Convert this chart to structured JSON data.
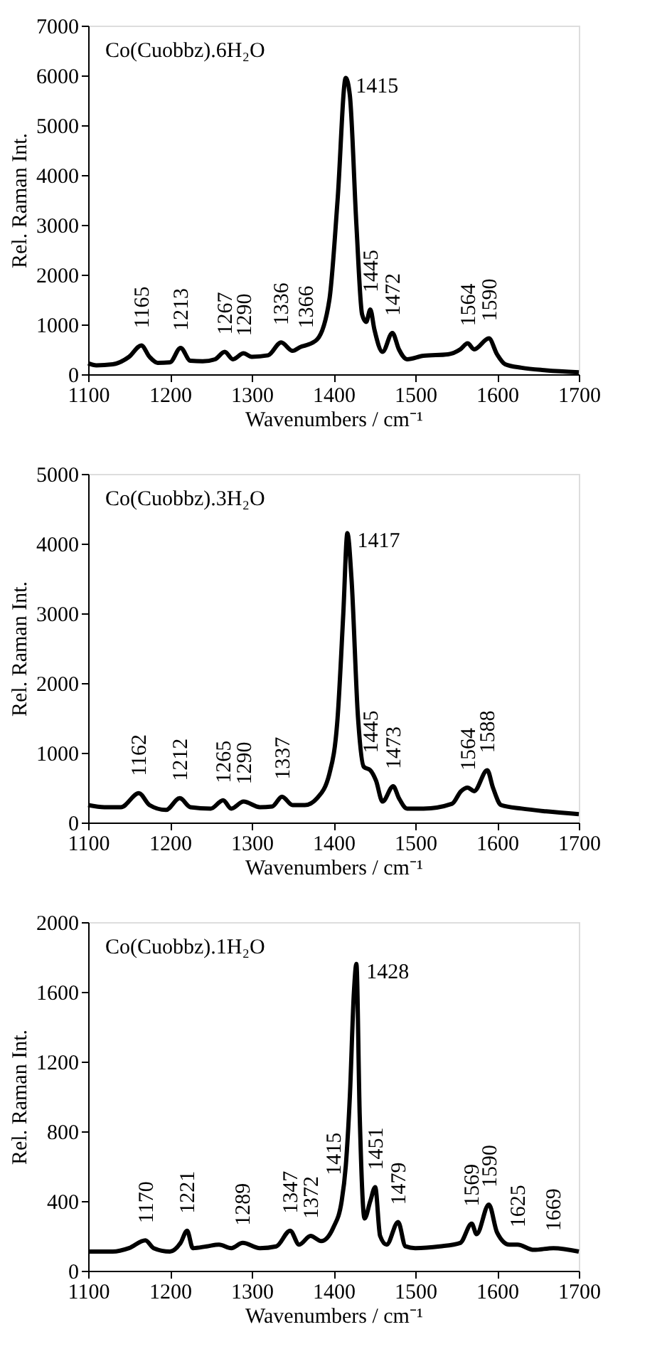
{
  "chart_data": [
    {
      "type": "line",
      "title": "Co(Cuobbz).6H₂O",
      "xlabel": "Wavenumbers / cm⁻¹",
      "ylabel": "Rel. Raman Int.",
      "xlim": [
        1100,
        1700
      ],
      "xticks": [
        1100,
        1200,
        1300,
        1400,
        1500,
        1600,
        1700
      ],
      "ylim": [
        0,
        7000
      ],
      "yticks": [
        0,
        1000,
        2000,
        3000,
        4000,
        5000,
        6000,
        7000
      ],
      "grid": false,
      "legend": false,
      "line_style": "solid",
      "marker": "none",
      "series": [
        {
          "color": "#000000",
          "x": [
            1100,
            1110,
            1130,
            1150,
            1165,
            1175,
            1185,
            1200,
            1213,
            1225,
            1240,
            1255,
            1267,
            1277,
            1290,
            1300,
            1320,
            1336,
            1350,
            1360,
            1366,
            1380,
            1395,
            1405,
            1415,
            1420,
            1428,
            1435,
            1440,
            1445,
            1450,
            1460,
            1472,
            1480,
            1490,
            1510,
            1540,
            1555,
            1564,
            1572,
            1590,
            1600,
            1610,
            1630,
            1660,
            1700
          ],
          "values": [
            220,
            180,
            200,
            350,
            580,
            350,
            230,
            240,
            530,
            270,
            260,
            300,
            450,
            300,
            420,
            350,
            380,
            640,
            470,
            550,
            580,
            700,
            1500,
            3500,
            5950,
            5600,
            3000,
            1200,
            1050,
            1300,
            900,
            450,
            830,
            500,
            300,
            370,
            400,
            500,
            620,
            500,
            720,
            400,
            200,
            130,
            80,
            40
          ]
        }
      ],
      "annotations": [
        {
          "text": "1165",
          "x": 1165,
          "y": 580
        },
        {
          "text": "1213",
          "x": 1213,
          "y": 530
        },
        {
          "text": "1267",
          "x": 1267,
          "y": 450
        },
        {
          "text": "1290",
          "x": 1290,
          "y": 420
        },
        {
          "text": "1336",
          "x": 1336,
          "y": 640
        },
        {
          "text": "1366",
          "x": 1366,
          "y": 580
        },
        {
          "text": "1415",
          "x": 1415,
          "y": 5950
        },
        {
          "text": "1445",
          "x": 1445,
          "y": 1300
        },
        {
          "text": "1472",
          "x": 1472,
          "y": 830
        },
        {
          "text": "1564",
          "x": 1564,
          "y": 620
        },
        {
          "text": "1590",
          "x": 1590,
          "y": 720
        }
      ]
    },
    {
      "type": "line",
      "title": "Co(Cuobbz).3H₂O",
      "xlabel": "Wavenumbers / cm⁻¹",
      "ylabel": "Rel. Raman Int.",
      "xlim": [
        1100,
        1700
      ],
      "xticks": [
        1100,
        1200,
        1300,
        1400,
        1500,
        1600,
        1700
      ],
      "ylim": [
        0,
        5000
      ],
      "yticks": [
        0,
        1000,
        2000,
        3000,
        4000,
        5000
      ],
      "grid": false,
      "legend": false,
      "line_style": "solid",
      "marker": "none",
      "series": [
        {
          "color": "#000000",
          "x": [
            1100,
            1120,
            1140,
            1162,
            1175,
            1195,
            1212,
            1225,
            1250,
            1265,
            1275,
            1290,
            1310,
            1325,
            1337,
            1350,
            1365,
            1380,
            1395,
            1405,
            1412,
            1417,
            1422,
            1430,
            1437,
            1445,
            1452,
            1460,
            1473,
            1480,
            1490,
            1510,
            1545,
            1556,
            1564,
            1572,
            1588,
            1595,
            1605,
            1630,
            1660,
            1700
          ],
          "values": [
            250,
            220,
            220,
            420,
            250,
            180,
            350,
            220,
            200,
            320,
            200,
            300,
            220,
            230,
            370,
            250,
            250,
            350,
            700,
            1500,
            3000,
            4150,
            3500,
            1500,
            800,
            750,
            600,
            300,
            520,
            350,
            200,
            200,
            270,
            450,
            500,
            450,
            750,
            500,
            250,
            200,
            160,
            120
          ]
        }
      ],
      "annotations": [
        {
          "text": "1162",
          "x": 1162,
          "y": 420
        },
        {
          "text": "1212",
          "x": 1212,
          "y": 350
        },
        {
          "text": "1265",
          "x": 1265,
          "y": 320
        },
        {
          "text": "1290",
          "x": 1290,
          "y": 300
        },
        {
          "text": "1337",
          "x": 1337,
          "y": 370
        },
        {
          "text": "1417",
          "x": 1417,
          "y": 4150
        },
        {
          "text": "1445",
          "x": 1445,
          "y": 750
        },
        {
          "text": "1473",
          "x": 1473,
          "y": 520
        },
        {
          "text": "1564",
          "x": 1564,
          "y": 500
        },
        {
          "text": "1588",
          "x": 1588,
          "y": 750
        }
      ]
    },
    {
      "type": "line",
      "title": "Co(Cuobbz).1H₂O",
      "xlabel": "Wavenumbers / cm⁻¹",
      "ylabel": "Rel. Raman Int.",
      "xlim": [
        1100,
        1700
      ],
      "xticks": [
        1100,
        1200,
        1300,
        1400,
        1500,
        1600,
        1700
      ],
      "ylim": [
        0,
        2000
      ],
      "yticks": [
        0,
        400,
        800,
        1200,
        1600,
        2000
      ],
      "grid": false,
      "legend": false,
      "line_style": "solid",
      "marker": "none",
      "series": [
        {
          "color": "#000000",
          "x": [
            1100,
            1130,
            1150,
            1170,
            1180,
            1200,
            1213,
            1221,
            1228,
            1245,
            1260,
            1275,
            1289,
            1310,
            1330,
            1347,
            1358,
            1372,
            1385,
            1400,
            1410,
            1415,
            1420,
            1425,
            1428,
            1432,
            1438,
            1445,
            1451,
            1457,
            1465,
            1479,
            1488,
            1500,
            1530,
            1555,
            1569,
            1575,
            1590,
            1600,
            1615,
            1625,
            1645,
            1669,
            1700
          ],
          "values": [
            110,
            110,
            130,
            175,
            130,
            110,
            160,
            230,
            130,
            140,
            150,
            130,
            160,
            130,
            140,
            230,
            150,
            200,
            170,
            250,
            400,
            600,
            1000,
            1600,
            1760,
            900,
            300,
            400,
            480,
            200,
            150,
            280,
            140,
            130,
            140,
            160,
            270,
            210,
            380,
            220,
            150,
            150,
            120,
            130,
            110
          ]
        }
      ],
      "annotations": [
        {
          "text": "1170",
          "x": 1170,
          "y": 175
        },
        {
          "text": "1221",
          "x": 1221,
          "y": 230
        },
        {
          "text": "1289",
          "x": 1289,
          "y": 160
        },
        {
          "text": "1347",
          "x": 1347,
          "y": 230
        },
        {
          "text": "1372",
          "x": 1372,
          "y": 200
        },
        {
          "text": "1415",
          "x": 1400,
          "y": 450
        },
        {
          "text": "1428",
          "x": 1428,
          "y": 1760
        },
        {
          "text": "1451",
          "x": 1451,
          "y": 480
        },
        {
          "text": "1479",
          "x": 1479,
          "y": 280
        },
        {
          "text": "1569",
          "x": 1569,
          "y": 270
        },
        {
          "text": "1590",
          "x": 1590,
          "y": 380
        },
        {
          "text": "1625",
          "x": 1625,
          "y": 150
        },
        {
          "text": "1669",
          "x": 1669,
          "y": 130
        }
      ]
    }
  ]
}
